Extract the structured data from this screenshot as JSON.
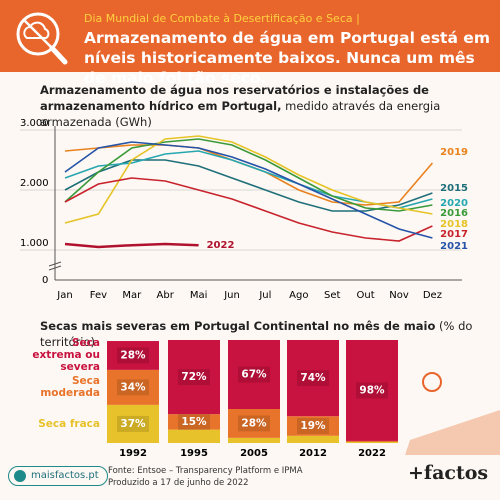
{
  "header": {
    "kicker": "Dia Mundial de Combate à Desertificação e Seca |",
    "title": "Armazenamento de água em Portugal está em níveis historicamente baixos. Nunca um mês de maio foi tão seco."
  },
  "chart_data": [
    {
      "type": "line",
      "title": "Armazenamento de água nos reservatórios e instalações de armazenamento hídrico em Portugal,",
      "subtitle": "medido através da energia armazenada (GWh)",
      "categories": [
        "Jan",
        "Fev",
        "Mar",
        "Abr",
        "Mai",
        "Jun",
        "Jul",
        "Ago",
        "Set",
        "Out",
        "Nov",
        "Dez"
      ],
      "series": [
        {
          "name": "2019",
          "color": "#e8821e",
          "values": [
            2650,
            2700,
            2750,
            2750,
            2700,
            2500,
            2300,
            2000,
            1800,
            1750,
            1800,
            2450
          ]
        },
        {
          "name": "2015",
          "color": "#1f6f7a",
          "values": [
            2000,
            2300,
            2500,
            2500,
            2400,
            2200,
            2000,
            1800,
            1650,
            1650,
            1750,
            1950
          ]
        },
        {
          "name": "2020",
          "color": "#26a7b0",
          "values": [
            2200,
            2400,
            2450,
            2600,
            2650,
            2500,
            2300,
            2100,
            1900,
            1800,
            1700,
            1850
          ]
        },
        {
          "name": "2016",
          "color": "#3a9a3a",
          "values": [
            1800,
            2300,
            2700,
            2800,
            2850,
            2750,
            2500,
            2200,
            1900,
            1700,
            1650,
            1750
          ]
        },
        {
          "name": "2018",
          "color": "#e6c327",
          "values": [
            1450,
            1600,
            2500,
            2850,
            2900,
            2800,
            2550,
            2250,
            2000,
            1800,
            1700,
            1600
          ]
        },
        {
          "name": "2017",
          "color": "#c8232c",
          "values": [
            1800,
            2100,
            2200,
            2150,
            2000,
            1850,
            1650,
            1450,
            1300,
            1200,
            1150,
            1400
          ]
        },
        {
          "name": "2021",
          "color": "#2553a8",
          "values": [
            2300,
            2700,
            2800,
            2750,
            2700,
            2550,
            2350,
            2100,
            1850,
            1600,
            1350,
            1200
          ]
        },
        {
          "name": "2022",
          "color": "#b0122e",
          "values": [
            1100,
            1050,
            1080,
            1100,
            1080,
            null,
            null,
            null,
            null,
            null,
            null,
            null
          ]
        }
      ],
      "ylim": [
        500,
        3000
      ],
      "yticks": [
        {
          "value": 1000,
          "label": "1.000"
        },
        {
          "value": 2000,
          "label": "2.000"
        },
        {
          "value": 3000,
          "label": "3.000"
        }
      ],
      "y_break_label": "0",
      "grid": true
    },
    {
      "type": "stacked_bar",
      "title": "Secas mais severas em Portugal Continental no mês de maio",
      "subtitle": "(% do território)",
      "categories": [
        "1992",
        "1995",
        "2005",
        "2012",
        "2022"
      ],
      "series": [
        {
          "name": "Seca extrema ou severa",
          "color": "#c8123f",
          "values": [
            28,
            72,
            67,
            74,
            98
          ],
          "value_labels": [
            "28%",
            "72%",
            "67%",
            "74%",
            "98%"
          ]
        },
        {
          "name": "Seca moderada",
          "color": "#e8732a",
          "values": [
            34,
            15,
            28,
            19,
            1
          ],
          "value_labels": [
            "34%",
            "15%",
            "28%",
            "19%",
            null
          ]
        },
        {
          "name": "Seca fraca",
          "color": "#e8c22a",
          "values": [
            37,
            13,
            5,
            7,
            1
          ],
          "value_labels": [
            "37%",
            null,
            null,
            null,
            null
          ]
        }
      ],
      "ylim": [
        0,
        100
      ]
    }
  ],
  "footer": {
    "site": "maisfactos.pt",
    "source": "Fonte: Entsoe – Transparency Platform e IPMA",
    "date": "Produzido a 17 de junho de 2022",
    "logo": "+factos"
  }
}
